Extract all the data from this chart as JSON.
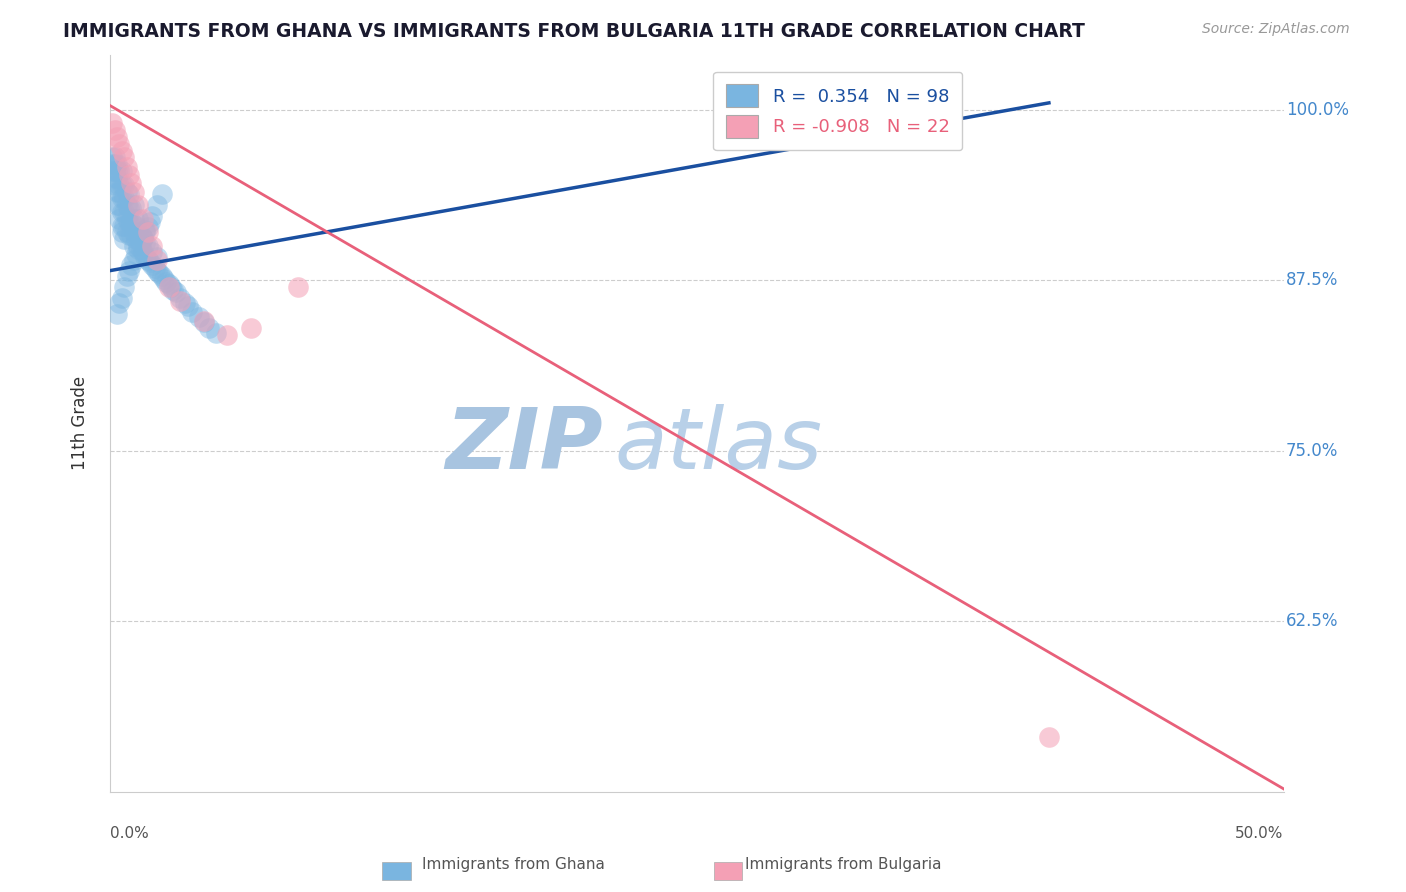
{
  "title": "IMMIGRANTS FROM GHANA VS IMMIGRANTS FROM BULGARIA 11TH GRADE CORRELATION CHART",
  "source": "Source: ZipAtlas.com",
  "xlabel_bottom_left": "0.0%",
  "xlabel_bottom_right": "50.0%",
  "ylabel": "11th Grade",
  "ytick_labels": [
    "100.0%",
    "87.5%",
    "75.0%",
    "62.5%"
  ],
  "ytick_values": [
    1.0,
    0.875,
    0.75,
    0.625
  ],
  "xlim": [
    0.0,
    0.5
  ],
  "ylim": [
    0.5,
    1.04
  ],
  "ghana_R": 0.354,
  "ghana_N": 98,
  "bulgaria_R": -0.908,
  "bulgaria_N": 22,
  "ghana_color": "#7ab5e0",
  "bulgaria_color": "#f4a0b5",
  "ghana_line_color": "#1a4fa0",
  "bulgaria_line_color": "#e8607a",
  "background_color": "#ffffff",
  "grid_color": "#c8c8c8",
  "title_color": "#1a1a2e",
  "watermark_color": "#d0dff0",
  "ghana_scatter_x": [
    0.001,
    0.001,
    0.001,
    0.002,
    0.002,
    0.002,
    0.002,
    0.002,
    0.003,
    0.003,
    0.003,
    0.003,
    0.003,
    0.004,
    0.004,
    0.004,
    0.004,
    0.004,
    0.005,
    0.005,
    0.005,
    0.005,
    0.005,
    0.005,
    0.006,
    0.006,
    0.006,
    0.006,
    0.006,
    0.007,
    0.007,
    0.007,
    0.007,
    0.008,
    0.008,
    0.008,
    0.008,
    0.009,
    0.009,
    0.009,
    0.01,
    0.01,
    0.01,
    0.01,
    0.011,
    0.011,
    0.012,
    0.012,
    0.012,
    0.013,
    0.013,
    0.014,
    0.014,
    0.015,
    0.015,
    0.015,
    0.016,
    0.016,
    0.017,
    0.018,
    0.018,
    0.019,
    0.02,
    0.02,
    0.021,
    0.022,
    0.023,
    0.024,
    0.025,
    0.026,
    0.027,
    0.028,
    0.03,
    0.032,
    0.033,
    0.035,
    0.038,
    0.04,
    0.042,
    0.045,
    0.003,
    0.004,
    0.005,
    0.006,
    0.007,
    0.008,
    0.009,
    0.01,
    0.011,
    0.012,
    0.013,
    0.014,
    0.015,
    0.016,
    0.017,
    0.018,
    0.02,
    0.022
  ],
  "ghana_scatter_y": [
    0.955,
    0.96,
    0.965,
    0.945,
    0.95,
    0.955,
    0.96,
    0.965,
    0.93,
    0.94,
    0.95,
    0.955,
    0.96,
    0.92,
    0.93,
    0.94,
    0.945,
    0.955,
    0.91,
    0.915,
    0.925,
    0.935,
    0.945,
    0.955,
    0.905,
    0.915,
    0.925,
    0.935,
    0.945,
    0.91,
    0.92,
    0.93,
    0.94,
    0.908,
    0.918,
    0.928,
    0.938,
    0.908,
    0.918,
    0.928,
    0.9,
    0.91,
    0.92,
    0.93,
    0.905,
    0.915,
    0.9,
    0.91,
    0.92,
    0.898,
    0.908,
    0.896,
    0.906,
    0.892,
    0.902,
    0.912,
    0.89,
    0.9,
    0.888,
    0.886,
    0.896,
    0.884,
    0.882,
    0.892,
    0.88,
    0.878,
    0.876,
    0.874,
    0.872,
    0.87,
    0.868,
    0.866,
    0.862,
    0.858,
    0.856,
    0.852,
    0.848,
    0.844,
    0.84,
    0.836,
    0.85,
    0.858,
    0.862,
    0.87,
    0.878,
    0.882,
    0.886,
    0.89,
    0.894,
    0.898,
    0.902,
    0.906,
    0.91,
    0.914,
    0.918,
    0.922,
    0.93,
    0.938
  ],
  "bulgaria_scatter_x": [
    0.001,
    0.002,
    0.003,
    0.004,
    0.005,
    0.006,
    0.007,
    0.008,
    0.009,
    0.01,
    0.012,
    0.014,
    0.016,
    0.018,
    0.02,
    0.025,
    0.03,
    0.04,
    0.05,
    0.06,
    0.08,
    0.4
  ],
  "bulgaria_scatter_y": [
    0.99,
    0.985,
    0.98,
    0.975,
    0.97,
    0.965,
    0.958,
    0.952,
    0.946,
    0.94,
    0.93,
    0.92,
    0.91,
    0.9,
    0.89,
    0.87,
    0.86,
    0.845,
    0.835,
    0.84,
    0.87,
    0.54
  ],
  "ghana_line_x0": 0.0,
  "ghana_line_y0": 0.882,
  "ghana_line_x1": 0.4,
  "ghana_line_y1": 1.005,
  "bulgaria_line_x0": 0.0,
  "bulgaria_line_y0": 1.003,
  "bulgaria_line_x1": 0.5,
  "bulgaria_line_y1": 0.502
}
